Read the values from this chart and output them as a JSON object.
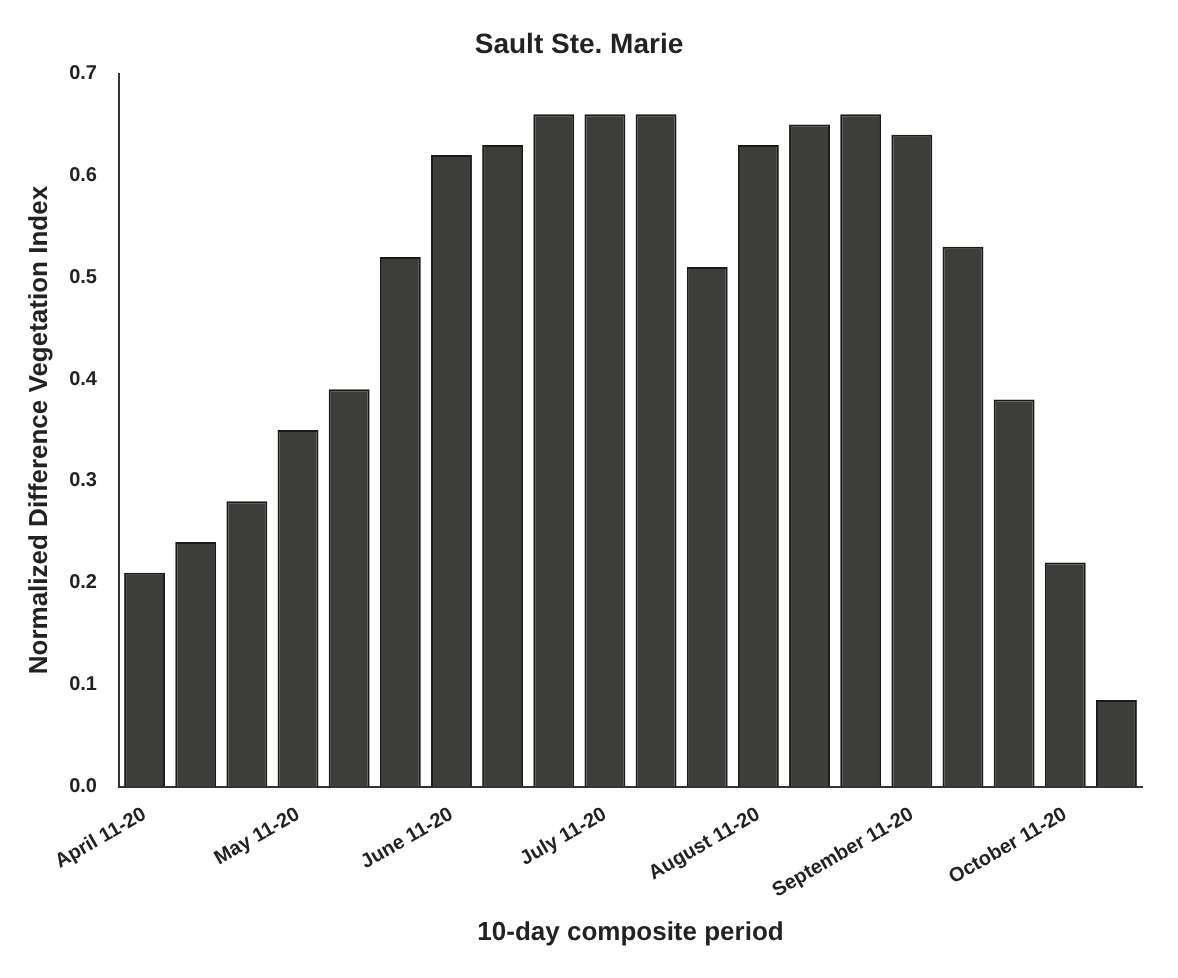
{
  "chart_data": {
    "type": "bar",
    "title": "Sault Ste. Marie",
    "xlabel": "10-day composite period",
    "ylabel": "Normalized Difference Vegetation Index",
    "categories": [
      "April 11-20",
      null,
      null,
      "May 11-20",
      null,
      null,
      "June 11-20",
      null,
      null,
      "July 11-20",
      null,
      null,
      "August 11-20",
      null,
      null,
      "September 11-20",
      null,
      null,
      "October 11-20",
      null
    ],
    "values": [
      0.21,
      0.24,
      0.28,
      0.35,
      0.39,
      0.52,
      0.62,
      0.63,
      0.66,
      0.66,
      0.66,
      0.51,
      0.63,
      0.65,
      0.66,
      0.64,
      0.53,
      0.38,
      0.22,
      0.085
    ],
    "color": "#3d3d3a",
    "ylim": [
      0,
      0.7
    ],
    "yticks": [
      {
        "value": 0,
        "label": "0.0"
      },
      0.1,
      0.2,
      0.3,
      0.4,
      0.5,
      0.6,
      0.7
    ],
    "grid": false
  }
}
